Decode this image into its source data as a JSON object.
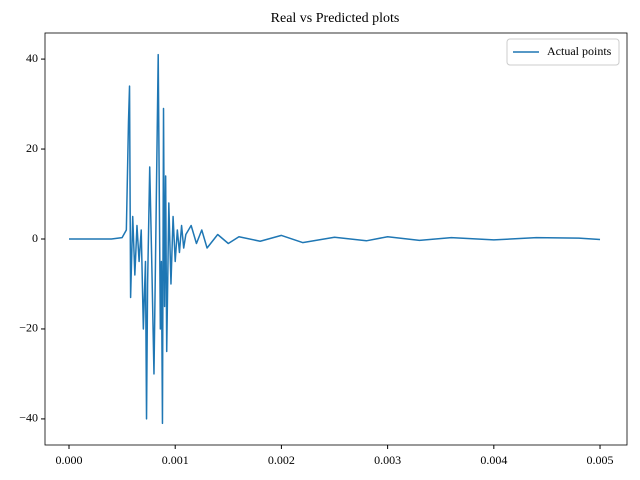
{
  "chart_data": {
    "type": "line",
    "title": "Real vs Predicted plots",
    "x": [
      0,
      0.0004,
      0.0005,
      0.00054,
      0.00056,
      0.00057,
      0.00058,
      0.0006,
      0.00062,
      0.00064,
      0.00066,
      0.00068,
      0.0007,
      0.00072,
      0.00073,
      0.00074,
      0.00076,
      0.00078,
      0.0008,
      0.00082,
      0.00084,
      0.00086,
      0.00087,
      0.00088,
      0.00089,
      0.0009,
      0.00091,
      0.00092,
      0.00094,
      0.00096,
      0.00098,
      0.001,
      0.00102,
      0.00104,
      0.00106,
      0.00108,
      0.0011,
      0.00115,
      0.0012,
      0.00125,
      0.0013,
      0.0014,
      0.0015,
      0.0016,
      0.0018,
      0.002,
      0.0022,
      0.0025,
      0.0028,
      0.003,
      0.0033,
      0.0036,
      0.004,
      0.0044,
      0.0048,
      0.005
    ],
    "series": [
      {
        "name": "Actual points",
        "color": "#1f77b4",
        "values": [
          0,
          0,
          0.3,
          2,
          26,
          34,
          -13,
          5,
          -8,
          3,
          -5,
          2,
          -20,
          -5,
          -40,
          -10,
          16,
          -6,
          -30,
          5,
          41,
          -20,
          -5,
          -41,
          29,
          -15,
          14,
          -25,
          8,
          -10,
          5,
          -5,
          2,
          -3,
          3,
          -2,
          1,
          3,
          -1,
          2,
          -2,
          1,
          -1,
          0.5,
          -0.5,
          0.8,
          -0.8,
          0.4,
          -0.4,
          0.5,
          -0.3,
          0.3,
          -0.2,
          0.3,
          0.2,
          -0.1
        ]
      }
    ],
    "xlim": [
      -0.000226,
      0.005254
    ],
    "xticks": [
      {
        "value": 0,
        "label": "0.000"
      },
      {
        "value": 0.001,
        "label": "0.001"
      },
      {
        "value": 0.002,
        "label": "0.002"
      },
      {
        "value": 0.003,
        "label": "0.003"
      },
      {
        "value": 0.004,
        "label": "0.004"
      },
      {
        "value": 0.005,
        "label": "0.005"
      }
    ],
    "ylim": [
      -45.8,
      45.8
    ],
    "yticks": [
      {
        "value": -40,
        "label": "−40"
      },
      {
        "value": -20,
        "label": "−20"
      },
      0,
      20,
      40
    ],
    "legend": "upper right"
  }
}
